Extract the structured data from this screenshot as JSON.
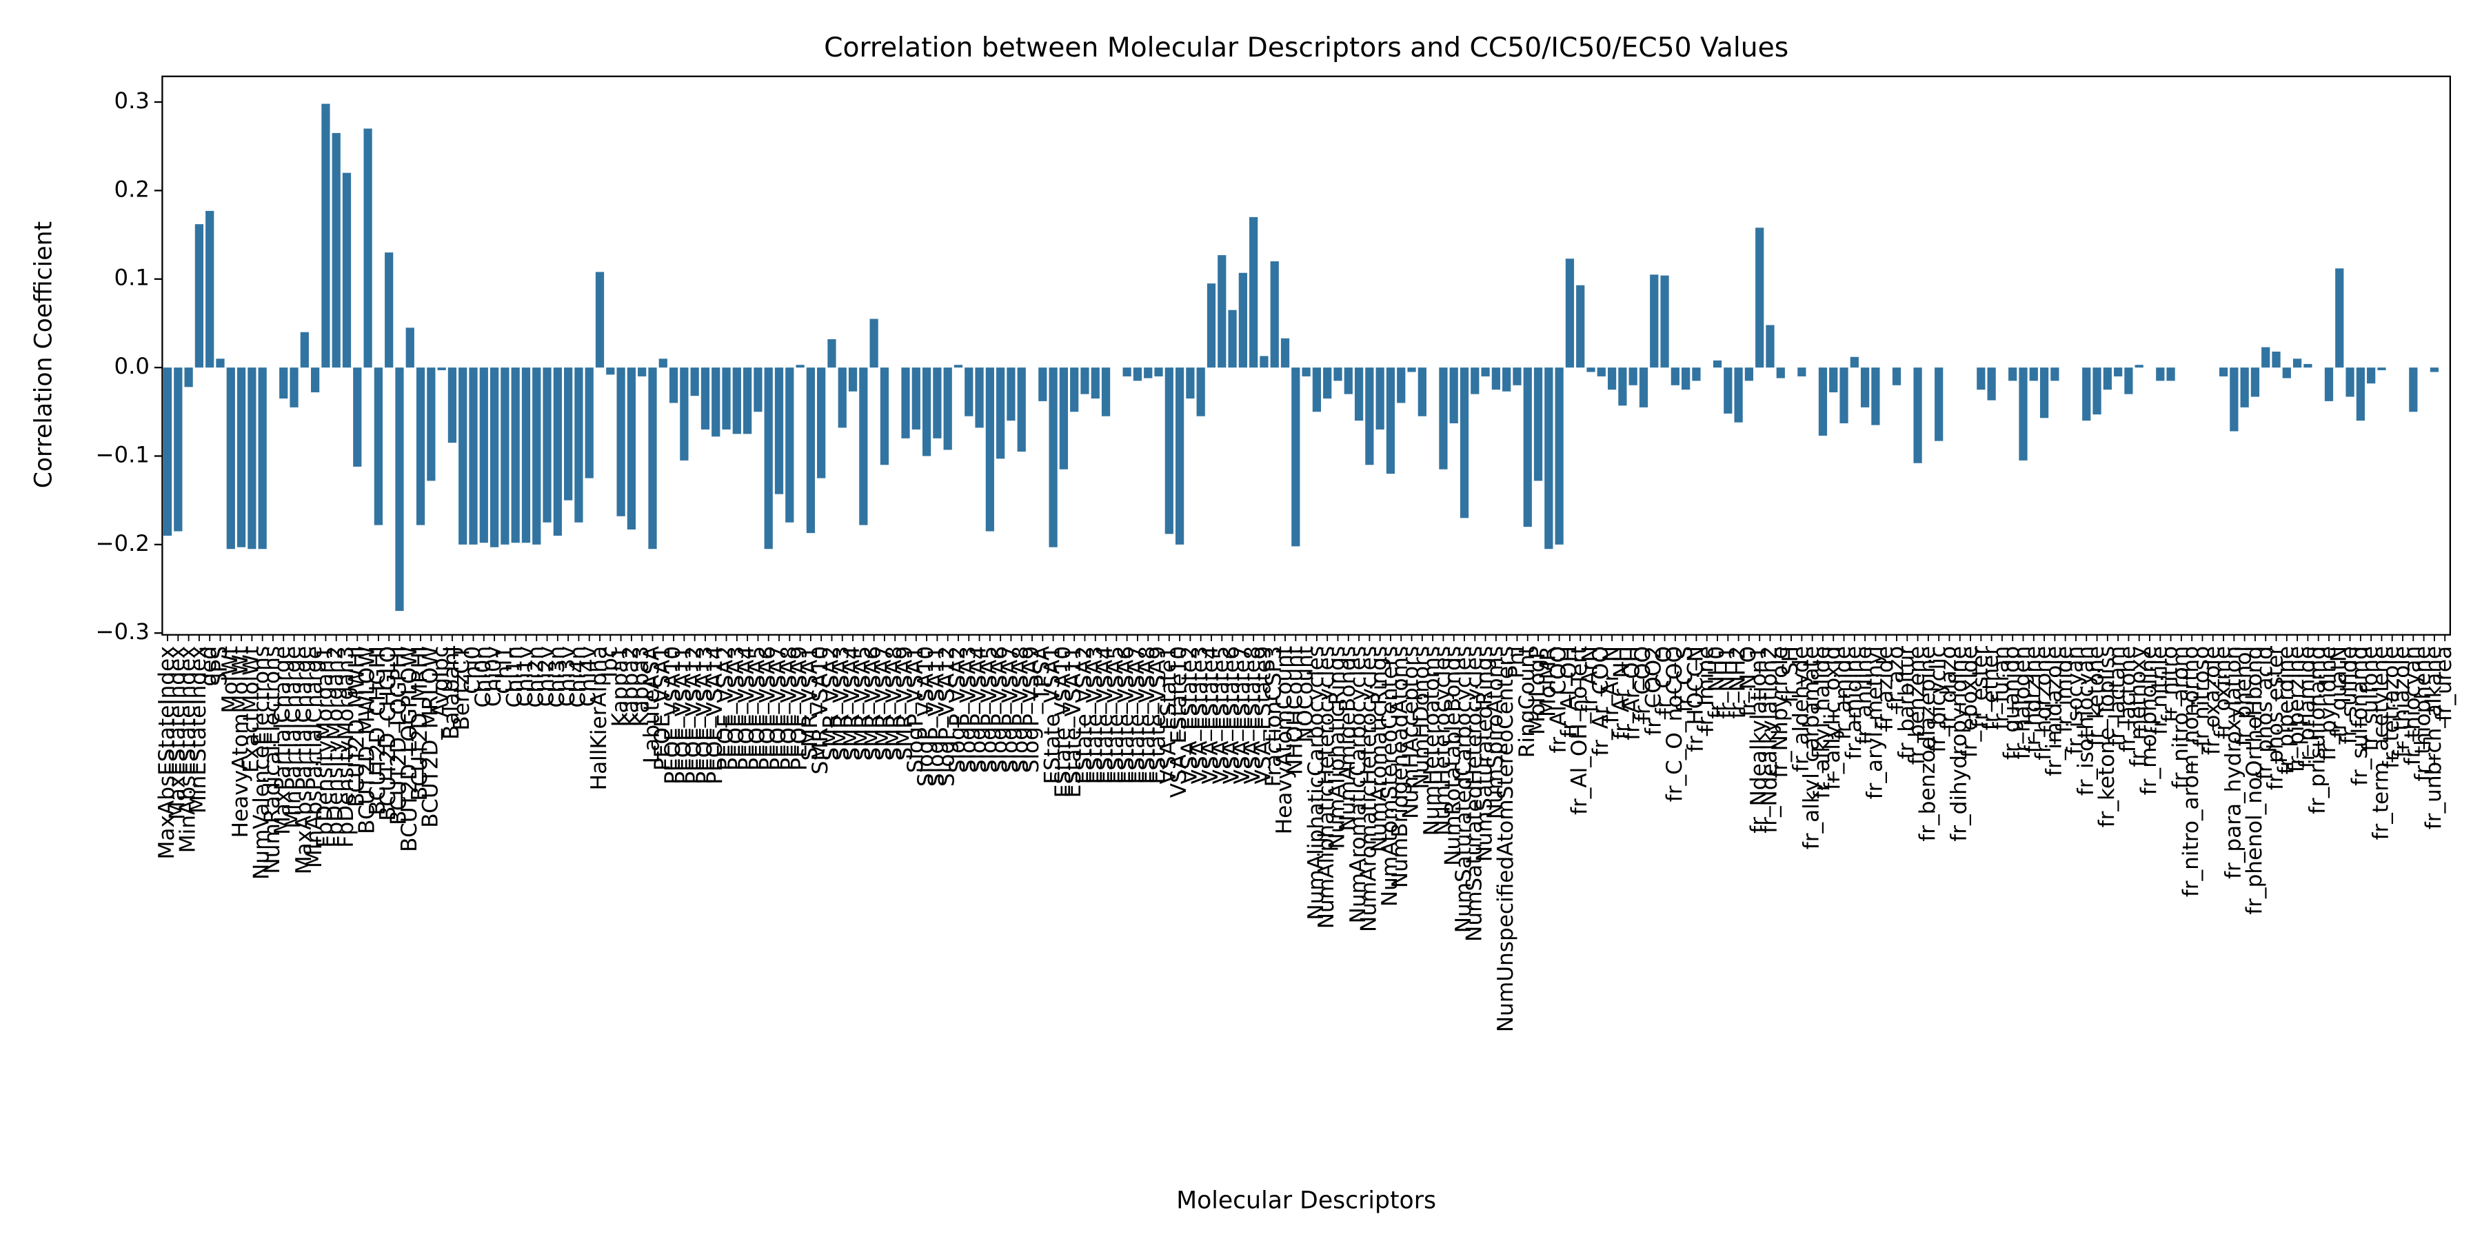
{
  "chart_data": {
    "type": "bar",
    "title": "Correlation between Molecular Descriptors and CC50/IC50/EC50 Values",
    "xlabel": "Molecular Descriptors",
    "ylabel": "Correlation Coefficient",
    "color": "#3274a1",
    "grid": false,
    "ylim": [
      -0.302,
      0.329
    ],
    "yticks": [
      {
        "value": -0.3,
        "label": "−0.3"
      },
      {
        "value": -0.2,
        "label": "−0.2"
      },
      {
        "value": -0.1,
        "label": "−0.1"
      },
      {
        "value": 0,
        "label": "0.0"
      },
      0.1,
      0.2,
      0.3
    ],
    "categories": [
      "MaxAbsEStateIndex",
      "MaxEStateIndex",
      "MinAbsEStateIndex",
      "MinEStateIndex",
      "qed",
      "SPS",
      "MolWt",
      "HeavyAtomMolWt",
      "ExactMolWt",
      "NumValenceElectrons",
      "NumRadicalElectrons",
      "MaxPartialCharge",
      "MinPartialCharge",
      "MaxAbsPartialCharge",
      "MinAbsPartialCharge",
      "FpDensityMorgan1",
      "FpDensityMorgan2",
      "FpDensityMorgan3",
      "BCUT2D_MWHI",
      "BCUT2D_MWLOW",
      "BCUT2D_CHGHI",
      "BCUT2D_CHGLO",
      "BCUT2D_LOGPHI",
      "BCUT2D_LOGPLOW",
      "BCUT2D_MRHI",
      "BCUT2D_MRLOW",
      "AvgIpc",
      "BalabanJ",
      "BertzCT",
      "Chi0",
      "Chi0n",
      "Chi0v",
      "Chi1",
      "Chi1n",
      "Chi1v",
      "Chi2n",
      "Chi2v",
      "Chi3n",
      "Chi3v",
      "Chi4n",
      "Chi4v",
      "HallKierAlpha",
      "Ipc",
      "Kappa1",
      "Kappa2",
      "Kappa3",
      "LabuteASA",
      "PEOE_VSA1",
      "PEOE_VSA10",
      "PEOE_VSA11",
      "PEOE_VSA12",
      "PEOE_VSA13",
      "PEOE_VSA14",
      "PEOE_VSA2",
      "PEOE_VSA3",
      "PEOE_VSA4",
      "PEOE_VSA5",
      "PEOE_VSA6",
      "PEOE_VSA7",
      "PEOE_VSA8",
      "PEOE_VSA9",
      "SMR_VSA1",
      "SMR_VSA10",
      "SMR_VSA2",
      "SMR_VSA3",
      "SMR_VSA4",
      "SMR_VSA5",
      "SMR_VSA6",
      "SMR_VSA7",
      "SMR_VSA8",
      "SMR_VSA9",
      "SlogP_VSA1",
      "SlogP_VSA10",
      "SlogP_VSA11",
      "SlogP_VSA12",
      "SlogP_VSA2",
      "SlogP_VSA3",
      "SlogP_VSA4",
      "SlogP_VSA5",
      "SlogP_VSA6",
      "SlogP_VSA7",
      "SlogP_VSA8",
      "SlogP_VSA9",
      "TPSA",
      "EState_VSA1",
      "EState_VSA10",
      "EState_VSA11",
      "EState_VSA2",
      "EState_VSA3",
      "EState_VSA4",
      "EState_VSA5",
      "EState_VSA6",
      "EState_VSA7",
      "EState_VSA8",
      "EState_VSA9",
      "VSA_EState1",
      "VSA_EState10",
      "VSA_EState2",
      "VSA_EState3",
      "VSA_EState4",
      "VSA_EState5",
      "VSA_EState6",
      "VSA_EState7",
      "VSA_EState8",
      "VSA_EState9",
      "FractionCSP3",
      "HeavyAtomCount",
      "NHOHCount",
      "NOCount",
      "NumAliphaticCarbocycles",
      "NumAliphaticHeterocycles",
      "NumAliphaticRings",
      "NumAmideBonds",
      "NumAromaticCarbocycles",
      "NumAromaticHeterocycles",
      "NumAromaticRings",
      "NumAtomStereoCenters",
      "NumBridgeheadAtoms",
      "NumHAcceptors",
      "NumHDonors",
      "NumHeteroatoms",
      "NumHeterocycles",
      "NumRotatableBonds",
      "NumSaturatedCarbocycles",
      "NumSaturatedHeterocycles",
      "NumSaturatedRings",
      "NumSpiroAtoms",
      "NumUnspecifiedAtomStereoCenters",
      "Phi",
      "RingCount",
      "MolLogP",
      "MolMR",
      "fr_Al_COO",
      "fr_Al_OH",
      "fr_Al_OH_noTert",
      "fr_ArN",
      "fr_Ar_COO",
      "fr_Ar_N",
      "fr_Ar_NH",
      "fr_Ar_OH",
      "fr_COO",
      "fr_COO2",
      "fr_C_O",
      "fr_C_O_noCOO",
      "fr_C_S",
      "fr_HOCCN",
      "fr_Imine",
      "fr_NH0",
      "fr_NH1",
      "fr_NH2",
      "fr_N_O",
      "fr_Ndealkylation1",
      "fr_Ndealkylation2",
      "fr_Nhpyrrole",
      "fr_SH",
      "fr_aldehyde",
      "fr_alkyl_carbamate",
      "fr_alkyl_halide",
      "fr_allylic_oxid",
      "fr_amide",
      "fr_amidine",
      "fr_aniline",
      "fr_aryl_methyl",
      "fr_azide",
      "fr_azo",
      "fr_barbitur",
      "fr_benzene",
      "fr_benzodiazepine",
      "fr_bicyclic",
      "fr_diazo",
      "fr_dihydropyridine",
      "fr_epoxide",
      "fr_ester",
      "fr_ether",
      "fr_furan",
      "fr_guanido",
      "fr_halogen",
      "fr_hdrzine",
      "fr_hdrzone",
      "fr_imidazole",
      "fr_imide",
      "fr_isocyan",
      "fr_isothiocyan",
      "fr_ketone",
      "fr_ketone_Topliss",
      "fr_lactam",
      "fr_lactone",
      "fr_methoxy",
      "fr_morpholine",
      "fr_nitrile",
      "fr_nitro",
      "fr_nitro_arom",
      "fr_nitro_arom_nonortho",
      "fr_nitroso",
      "fr_oxazole",
      "fr_oxime",
      "fr_para_hydroxylation",
      "fr_phenol",
      "fr_phenol_noOrthoHbond",
      "fr_phos_acid",
      "fr_phos_ester",
      "fr_piperdine",
      "fr_piperzine",
      "fr_priamide",
      "fr_prisulfonamd",
      "fr_pyridine",
      "fr_quatN",
      "fr_sulfide",
      "fr_sulfonamd",
      "fr_sulfone",
      "fr_term_acetylene",
      "fr_tetrazole",
      "fr_thiazole",
      "fr_thiocyan",
      "fr_thiophene",
      "fr_unbrch_alkane",
      "fr_urea"
    ],
    "values": [
      -0.19,
      -0.185,
      -0.022,
      0.162,
      0.177,
      0.01,
      -0.205,
      -0.203,
      -0.205,
      -0.205,
      0,
      -0.035,
      -0.045,
      0.04,
      -0.028,
      0.298,
      0.265,
      0.22,
      -0.112,
      0.27,
      -0.178,
      0.13,
      -0.275,
      0.045,
      -0.178,
      -0.128,
      -0.003,
      -0.085,
      -0.2,
      -0.2,
      -0.198,
      -0.203,
      -0.2,
      -0.198,
      -0.198,
      -0.2,
      -0.175,
      -0.19,
      -0.15,
      -0.175,
      -0.125,
      0.108,
      -0.008,
      -0.168,
      -0.183,
      -0.01,
      -0.205,
      0.01,
      -0.04,
      -0.105,
      -0.032,
      -0.07,
      -0.078,
      -0.07,
      -0.075,
      -0.075,
      -0.05,
      -0.205,
      -0.143,
      -0.175,
      0.003,
      -0.187,
      -0.125,
      0.032,
      -0.068,
      -0.027,
      -0.178,
      0.055,
      -0.11,
      0,
      -0.08,
      -0.07,
      -0.1,
      -0.08,
      -0.093,
      0.003,
      -0.055,
      -0.068,
      -0.185,
      -0.103,
      -0.06,
      -0.095,
      0,
      -0.038,
      -0.203,
      -0.115,
      -0.05,
      -0.03,
      -0.035,
      -0.055,
      0,
      -0.01,
      -0.015,
      -0.012,
      -0.01,
      -0.188,
      -0.2,
      -0.035,
      -0.055,
      0.095,
      0.127,
      0.065,
      0.107,
      0.17,
      0.013,
      0.12,
      0.033,
      -0.202,
      -0.01,
      -0.05,
      -0.035,
      -0.015,
      -0.03,
      -0.06,
      -0.11,
      -0.07,
      -0.12,
      -0.04,
      -0.005,
      -0.055,
      0,
      -0.115,
      -0.063,
      -0.17,
      -0.03,
      -0.01,
      -0.025,
      -0.027,
      -0.02,
      -0.18,
      -0.128,
      -0.205,
      -0.2,
      0.123,
      0.093,
      -0.005,
      -0.01,
      -0.025,
      -0.043,
      -0.02,
      -0.045,
      0.105,
      0.104,
      -0.02,
      -0.025,
      -0.015,
      0,
      0.008,
      -0.052,
      -0.062,
      -0.015,
      0.158,
      0.048,
      -0.012,
      0,
      -0.01,
      0,
      -0.077,
      -0.028,
      -0.063,
      0.012,
      -0.045,
      -0.065,
      0,
      -0.02,
      0,
      -0.108,
      0,
      -0.083,
      0,
      0,
      0,
      -0.025,
      -0.037,
      0,
      -0.015,
      -0.105,
      -0.015,
      -0.057,
      -0.015,
      0,
      0,
      -0.06,
      -0.053,
      -0.025,
      -0.01,
      -0.03,
      0.003,
      0,
      -0.015,
      -0.015,
      0,
      0,
      0,
      0,
      -0.01,
      -0.072,
      -0.045,
      -0.033,
      0.023,
      0.018,
      -0.012,
      0.01,
      0.004,
      0,
      -0.038,
      0.112,
      -0.033,
      -0.06,
      -0.018,
      -0.003,
      0,
      0,
      -0.05,
      0,
      -0.005,
      0
    ]
  }
}
